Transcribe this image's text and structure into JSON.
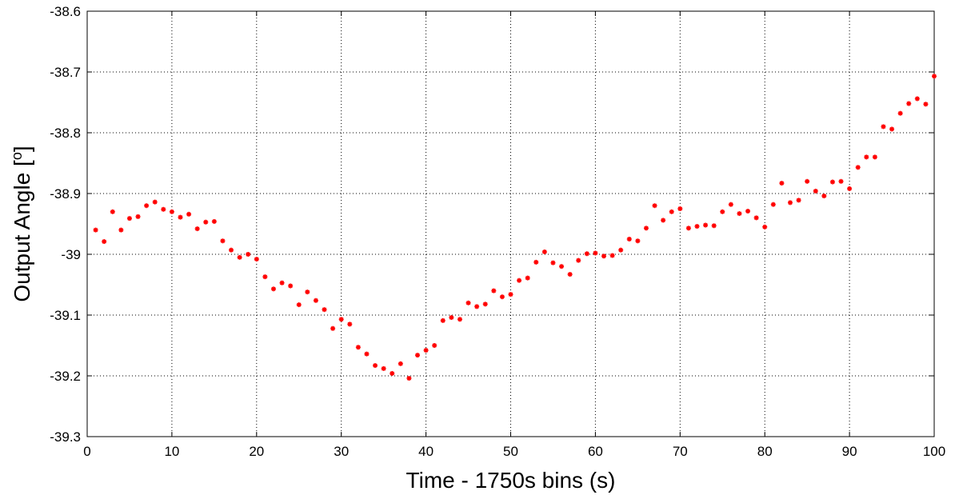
{
  "chart_data": {
    "type": "scatter",
    "xlabel": "Time - 1750s bins (s)",
    "ylabel": "Output Angle [",
    "ylabel_super": "o",
    "ylabel_end": "]",
    "xlim": [
      0,
      100
    ],
    "ylim": [
      -39.3,
      -38.6
    ],
    "xticks": [
      0,
      10,
      20,
      30,
      40,
      50,
      60,
      70,
      80,
      90,
      100
    ],
    "xtick_labels": [
      "0",
      "10",
      "20",
      "30",
      "40",
      "50",
      "60",
      "70",
      "80",
      "90",
      "100"
    ],
    "yticks": [
      -39.3,
      -39.2,
      -39.1,
      -39.0,
      -38.9,
      -38.8,
      -38.7,
      -38.6
    ],
    "ytick_labels": [
      "-39.3",
      "-39.2",
      "-39.1",
      "-39",
      "-38.9",
      "-38.8",
      "-38.7",
      "-38.6"
    ],
    "grid": true,
    "marker_color": "#ff0000",
    "x": [
      1,
      2,
      3,
      4,
      5,
      6,
      7,
      8,
      9,
      10,
      11,
      12,
      13,
      14,
      15,
      16,
      17,
      18,
      19,
      20,
      21,
      22,
      23,
      24,
      25,
      26,
      27,
      28,
      29,
      30,
      31,
      32,
      33,
      34,
      35,
      36,
      37,
      38,
      39,
      40,
      41,
      42,
      43,
      44,
      45,
      46,
      47,
      48,
      49,
      50,
      51,
      52,
      53,
      54,
      55,
      56,
      57,
      58,
      59,
      60,
      61,
      62,
      63,
      64,
      65,
      66,
      67,
      68,
      69,
      70,
      71,
      72,
      73,
      74,
      75,
      76,
      77,
      78,
      79,
      80,
      81,
      82,
      83,
      84,
      85,
      86,
      87,
      88,
      89,
      90,
      91,
      92,
      93,
      94,
      95,
      96,
      97,
      98,
      99,
      100
    ],
    "y": [
      -38.96,
      -38.979,
      -38.93,
      -38.96,
      -38.941,
      -38.938,
      -38.92,
      -38.914,
      -38.926,
      -38.93,
      -38.939,
      -38.934,
      -38.958,
      -38.947,
      -38.946,
      -38.978,
      -38.993,
      -39.005,
      -39.0,
      -39.008,
      -39.037,
      -39.057,
      -39.047,
      -39.052,
      -39.083,
      -39.062,
      -39.076,
      -39.091,
      -39.122,
      -39.107,
      -39.115,
      -39.153,
      -39.164,
      -39.183,
      -39.188,
      -39.196,
      -39.18,
      -39.204,
      -39.166,
      -39.158,
      -39.15,
      -39.109,
      -39.104,
      -39.107,
      -39.08,
      -39.086,
      -39.082,
      -39.06,
      -39.07,
      -39.066,
      -39.043,
      -39.039,
      -39.013,
      -38.996,
      -39.014,
      -39.02,
      -39.033,
      -39.01,
      -38.999,
      -38.998,
      -39.003,
      -39.002,
      -38.993,
      -38.975,
      -38.978,
      -38.957,
      -38.92,
      -38.944,
      -38.93,
      -38.925,
      -38.957,
      -38.954,
      -38.952,
      -38.953,
      -38.93,
      -38.918,
      -38.933,
      -38.929,
      -38.94,
      -38.955,
      -38.918,
      -38.883,
      -38.915,
      -38.911,
      -38.88,
      -38.896,
      -38.904,
      -38.881,
      -38.88,
      -38.892,
      -38.857,
      -38.84,
      -38.84,
      -38.79,
      -38.794,
      -38.768,
      -38.752,
      -38.744,
      -38.753,
      -38.707
    ]
  }
}
